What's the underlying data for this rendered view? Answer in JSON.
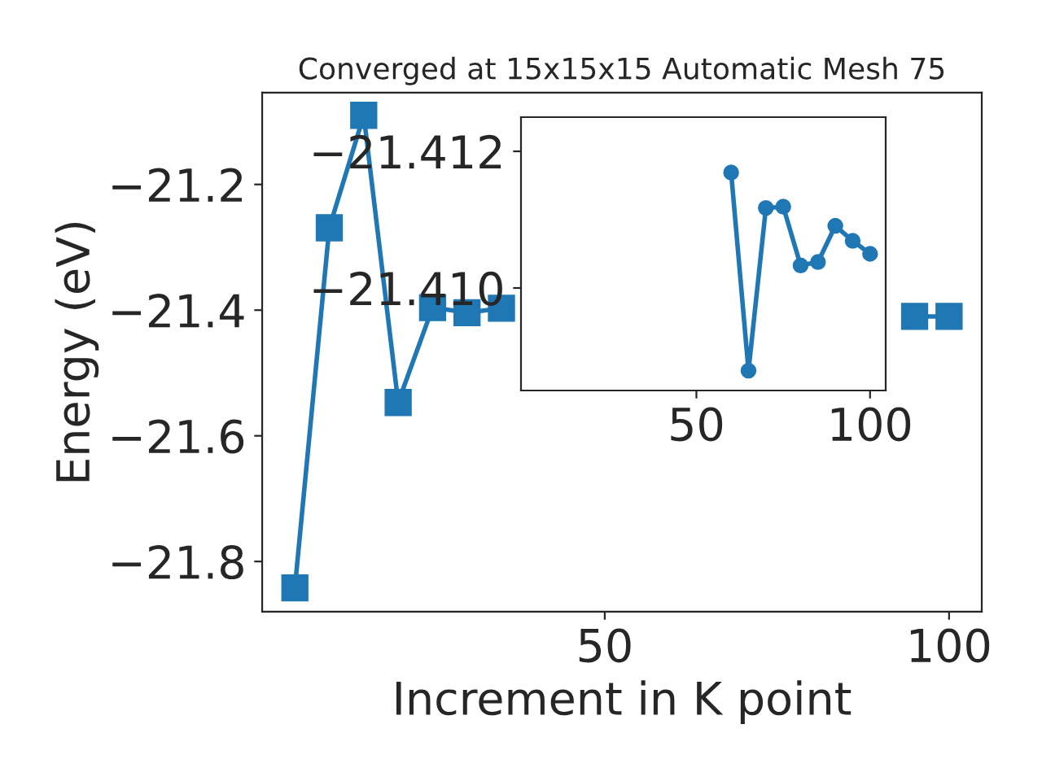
{
  "chart_data": [
    {
      "type": "line",
      "title": "Converged at 15x15x15 Automatic Mesh 75",
      "xlabel": "Increment in K point",
      "ylabel": "Energy (eV)",
      "marker": "square",
      "grid": false,
      "x": [
        5,
        10,
        15,
        20,
        25,
        30,
        35,
        40,
        45,
        50,
        55,
        60,
        65,
        70,
        75,
        80,
        85,
        90,
        95,
        100
      ],
      "series": [
        {
          "color": "#1f77b4",
          "values": [
            -21.842,
            -21.269,
            -21.09,
            -21.547,
            -21.396,
            -21.404,
            -21.397,
            null,
            null,
            null,
            null,
            null,
            null,
            null,
            null,
            null,
            null,
            null,
            -21.41,
            -21.41
          ]
        }
      ],
      "xlim": [
        0.25,
        104.75
      ],
      "xticks": [
        50,
        100
      ],
      "ylim": [
        -21.88,
        -21.054
      ],
      "yticks": [
        -21.8,
        -21.6,
        -21.4,
        -21.2
      ]
    },
    {
      "type": "line",
      "marker": "circle",
      "grid": false,
      "x": [
        60,
        65,
        70,
        75,
        80,
        85,
        90,
        95,
        100
      ],
      "series": [
        {
          "color": "#1f77b4",
          "values": [
            -21.41169,
            -21.40879,
            -21.41117,
            -21.41119,
            -21.41033,
            -21.41038,
            -21.41091,
            -21.41069,
            -21.4105
          ]
        }
      ],
      "xlim": [
        -0.5,
        104.5
      ],
      "xticks": [
        50,
        100
      ],
      "ylim": [
        -21.4085,
        -21.4125
      ],
      "yticks": [
        {
          "value": -21.412,
          "label": "−21.412"
        },
        {
          "value": -21.41,
          "label": "−21.410"
        }
      ]
    }
  ]
}
